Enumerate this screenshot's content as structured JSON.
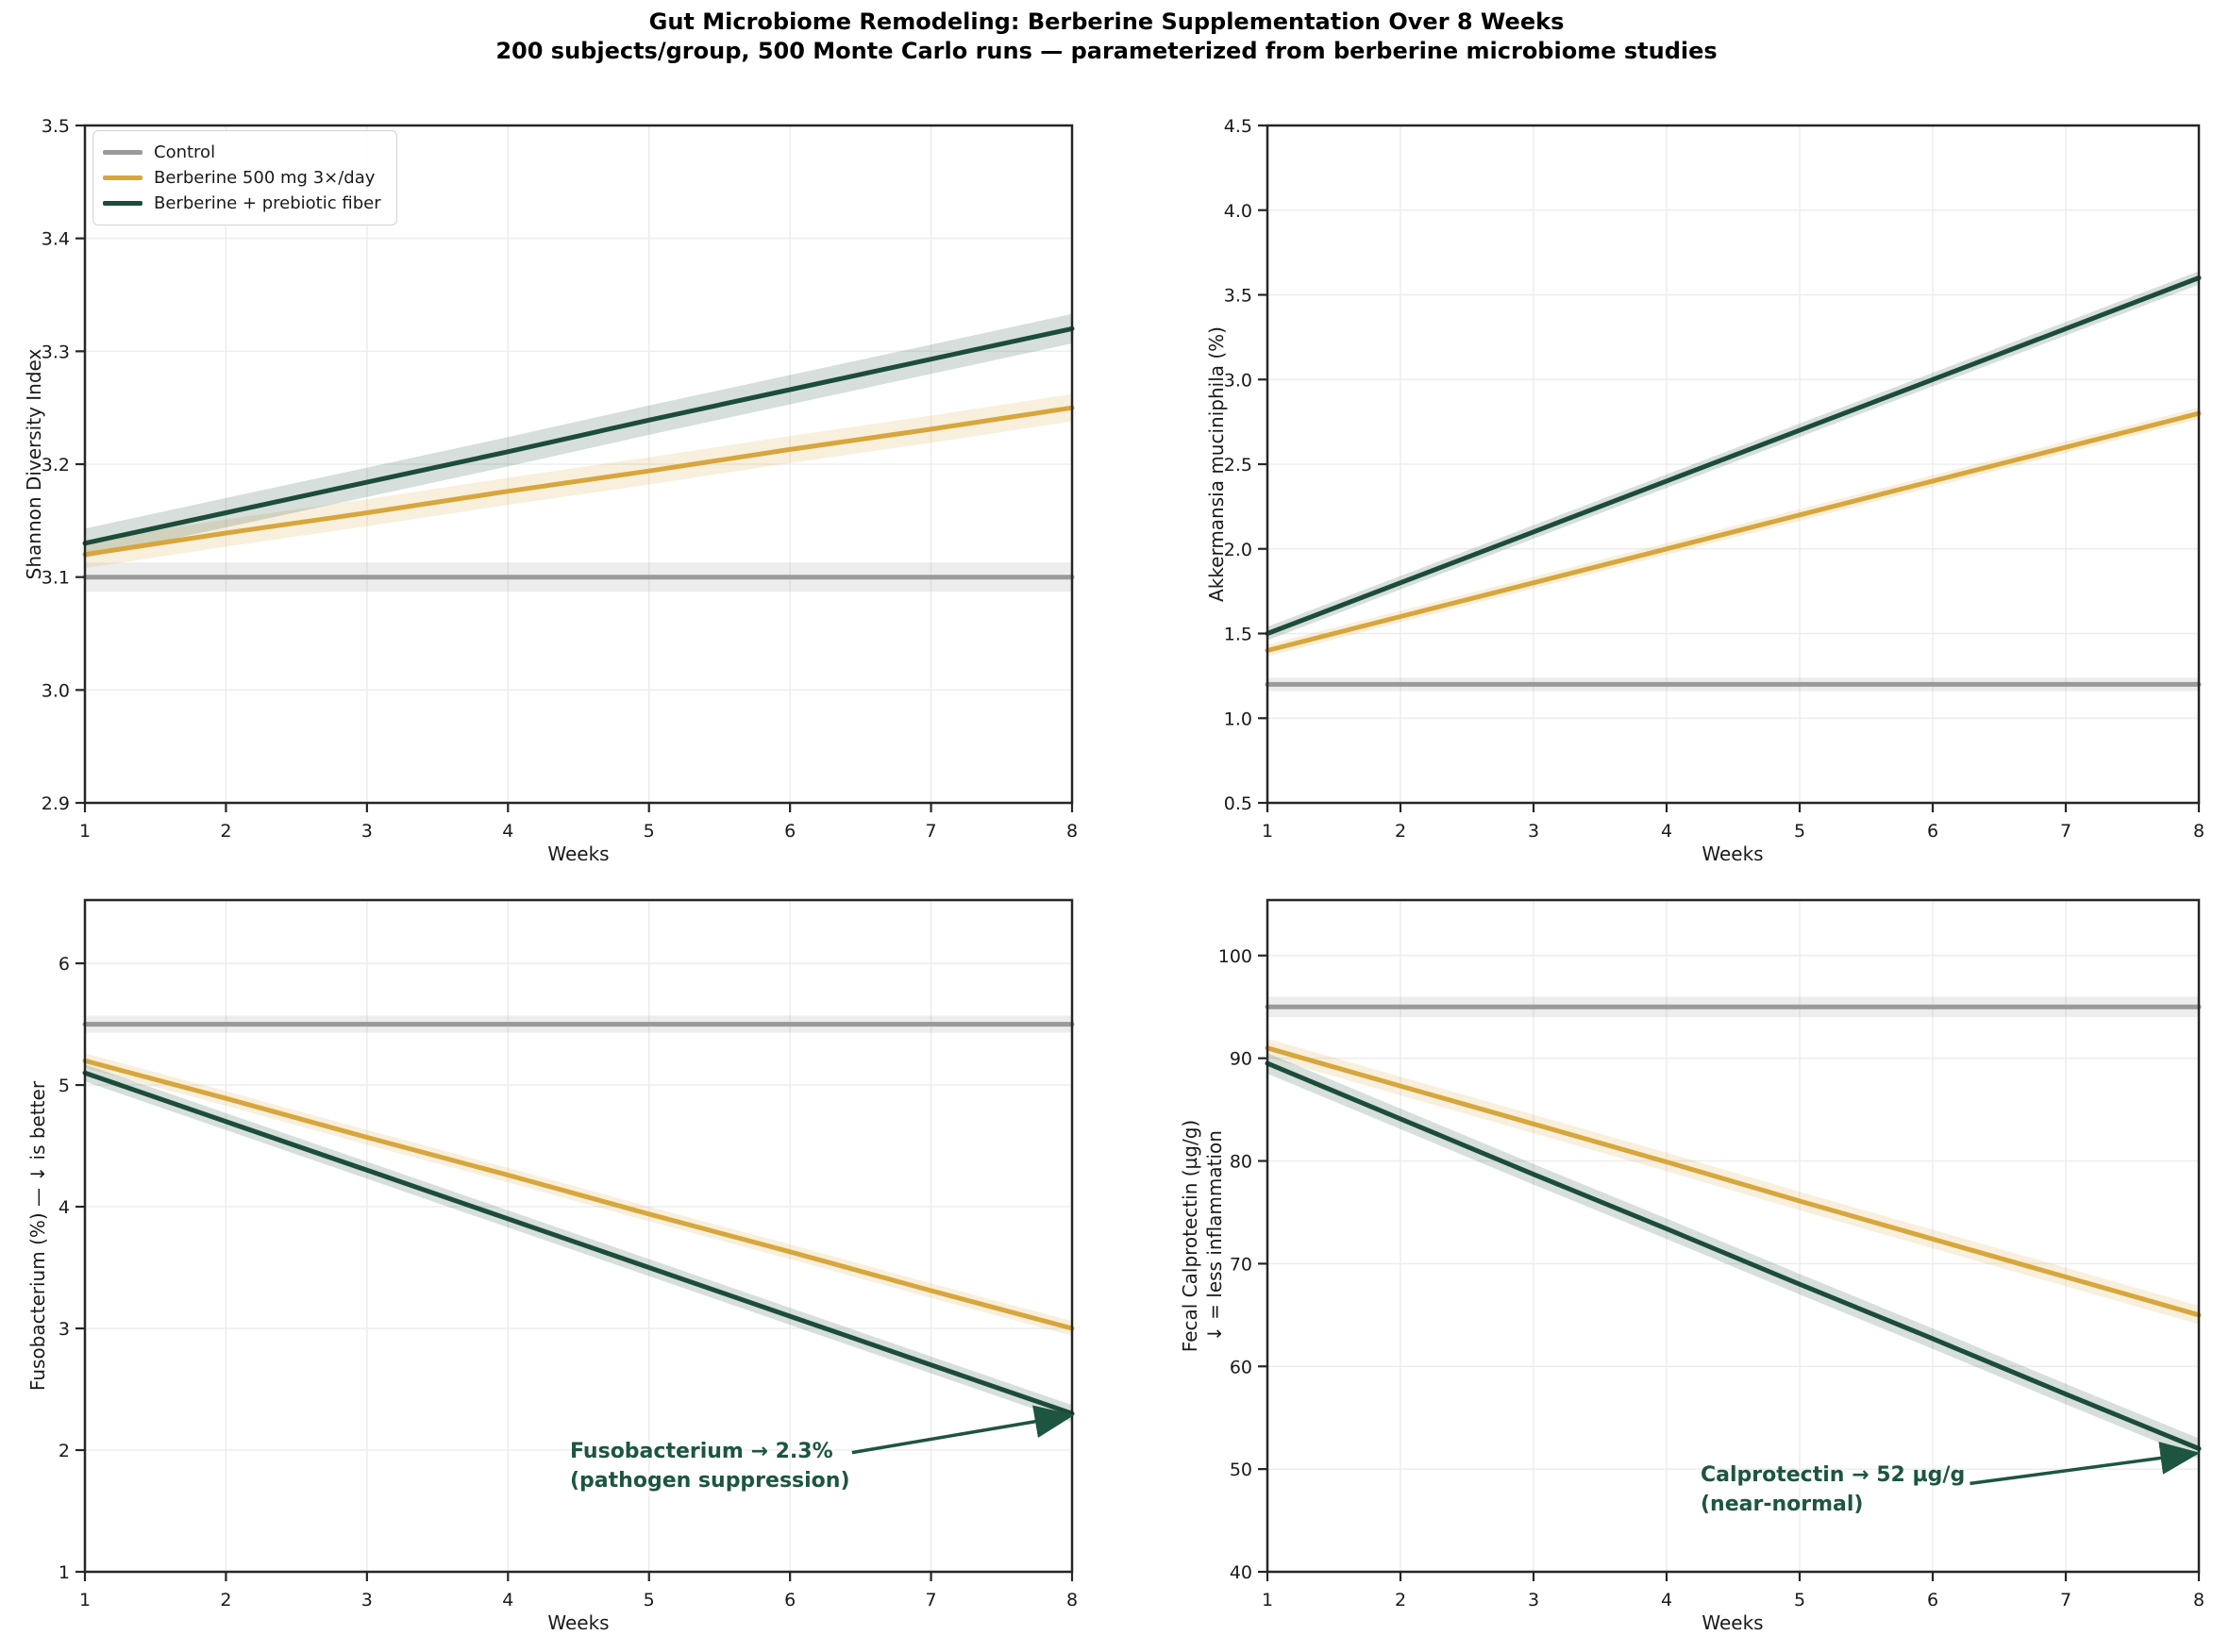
{
  "title": "Gut Microbiome Remodeling: Berberine Supplementation Over 8 Weeks",
  "subtitle": "200 subjects/group, 500 Monte Carlo runs — parameterized from berberine microbiome studies",
  "xlabel": "Weeks",
  "colors": {
    "control": "#9a9a9a",
    "berberine": "#d7a63c",
    "combo": "#1c4c3a",
    "annotation": "#1d5540",
    "grid": "#ededed",
    "spine": "#262626",
    "tick_text": "#1a1a1a"
  },
  "legend": {
    "items": [
      {
        "label": "Control",
        "color": "#9a9a9a"
      },
      {
        "label": "Berberine 500 mg 3×/day",
        "color": "#d7a63c"
      },
      {
        "label": "Berberine + prebiotic fiber",
        "color": "#1c4c3a"
      }
    ]
  },
  "chart_data": [
    {
      "type": "line",
      "position": "top-left",
      "ylabel": "Shannon Diversity Index",
      "xlabel": "Weeks",
      "ylim": [
        2.9,
        3.5
      ],
      "yticks": [
        2.9,
        3.0,
        3.1,
        3.2,
        3.3,
        3.4,
        3.5
      ],
      "ytick_labels": [
        "2.9",
        "3.0",
        "3.1",
        "3.2",
        "3.3",
        "3.4",
        "3.5"
      ],
      "x": [
        1,
        2,
        3,
        4,
        5,
        6,
        7,
        8
      ],
      "xtick_labels": [
        "1",
        "2",
        "3",
        "4",
        "5",
        "6",
        "7",
        "8"
      ],
      "grid": true,
      "legend_position": "upper-left",
      "series": [
        {
          "name": "Control",
          "color": "#9a9a9a",
          "ci": 0.013,
          "values": [
            3.1,
            3.1,
            3.1,
            3.1,
            3.1,
            3.1,
            3.1,
            3.1
          ]
        },
        {
          "name": "Berberine 500 mg 3×/day",
          "color": "#d7a63c",
          "ci": 0.012,
          "values": [
            3.12,
            3.139,
            3.157,
            3.176,
            3.194,
            3.213,
            3.231,
            3.25
          ]
        },
        {
          "name": "Berberine + prebiotic fiber",
          "color": "#1c4c3a",
          "ci": 0.013,
          "values": [
            3.13,
            3.157,
            3.184,
            3.211,
            3.239,
            3.266,
            3.293,
            3.32
          ]
        }
      ]
    },
    {
      "type": "line",
      "position": "top-right",
      "ylabel": "Akkermansia muciniphila (%)",
      "xlabel": "Weeks",
      "ylim": [
        0.5,
        4.5
      ],
      "yticks": [
        0.5,
        1.0,
        1.5,
        2.0,
        2.5,
        3.0,
        3.5,
        4.0,
        4.5
      ],
      "ytick_labels": [
        "0.5",
        "1.0",
        "1.5",
        "2.0",
        "2.5",
        "3.0",
        "3.5",
        "4.0",
        "4.5"
      ],
      "x": [
        1,
        2,
        3,
        4,
        5,
        6,
        7,
        8
      ],
      "xtick_labels": [
        "1",
        "2",
        "3",
        "4",
        "5",
        "6",
        "7",
        "8"
      ],
      "grid": true,
      "series": [
        {
          "name": "Control",
          "color": "#9a9a9a",
          "ci": 0.04,
          "values": [
            1.2,
            1.2,
            1.2,
            1.2,
            1.2,
            1.2,
            1.2,
            1.2
          ]
        },
        {
          "name": "Berberine 500 mg 3×/day",
          "color": "#d7a63c",
          "ci": 0.035,
          "values": [
            1.4,
            1.6,
            1.8,
            2.0,
            2.2,
            2.4,
            2.6,
            2.8
          ]
        },
        {
          "name": "Berberine + prebiotic fiber",
          "color": "#1c4c3a",
          "ci": 0.04,
          "values": [
            1.5,
            1.8,
            2.1,
            2.4,
            2.7,
            3.0,
            3.3,
            3.6
          ]
        }
      ]
    },
    {
      "type": "line",
      "position": "bottom-left",
      "ylabel": "Fusobacterium (%) — ↓ is better",
      "xlabel": "Weeks",
      "ylim": [
        1,
        6.52
      ],
      "yticks": [
        1,
        2,
        3,
        4,
        5,
        6
      ],
      "ytick_labels": [
        "1",
        "2",
        "3",
        "4",
        "5",
        "6"
      ],
      "x": [
        1,
        2,
        3,
        4,
        5,
        6,
        7,
        8
      ],
      "xtick_labels": [
        "1",
        "2",
        "3",
        "4",
        "5",
        "6",
        "7",
        "8"
      ],
      "grid": true,
      "series": [
        {
          "name": "Control",
          "color": "#9a9a9a",
          "ci": 0.07,
          "values": [
            5.5,
            5.5,
            5.5,
            5.5,
            5.5,
            5.5,
            5.5,
            5.5
          ]
        },
        {
          "name": "Berberine 500 mg 3×/day",
          "color": "#d7a63c",
          "ci": 0.06,
          "values": [
            5.2,
            4.89,
            4.57,
            4.26,
            3.94,
            3.63,
            3.31,
            3.0
          ]
        },
        {
          "name": "Berberine + prebiotic fiber",
          "color": "#1c4c3a",
          "ci": 0.07,
          "values": [
            5.1,
            4.7,
            4.3,
            3.9,
            3.5,
            3.1,
            2.7,
            2.3
          ]
        }
      ],
      "annotation": {
        "line1": "Fusobacterium → 2.3%",
        "line2": "(pathogen suppression)",
        "arrow_from": {
          "week": 6.44,
          "value": 1.98
        },
        "arrow_to": {
          "week": 7.97,
          "value": 2.28
        }
      }
    },
    {
      "type": "line",
      "position": "bottom-right",
      "ylabel": "Fecal Calprotectin (µg/g)",
      "ylabel2": "↓ = less inflammation",
      "xlabel": "Weeks",
      "ylim": [
        40,
        105.4
      ],
      "yticks": [
        40,
        50,
        60,
        70,
        80,
        90,
        100
      ],
      "ytick_labels": [
        "40",
        "50",
        "60",
        "70",
        "80",
        "90",
        "100"
      ],
      "x": [
        1,
        2,
        3,
        4,
        5,
        6,
        7,
        8
      ],
      "xtick_labels": [
        "1",
        "2",
        "3",
        "4",
        "5",
        "6",
        "7",
        "8"
      ],
      "grid": true,
      "series": [
        {
          "name": "Control",
          "color": "#9a9a9a",
          "ci": 1.0,
          "values": [
            95,
            95,
            95,
            95,
            95,
            95,
            95,
            95
          ]
        },
        {
          "name": "Berberine 500 mg 3×/day",
          "color": "#d7a63c",
          "ci": 0.9,
          "values": [
            91,
            87.3,
            83.6,
            79.9,
            76.1,
            72.4,
            68.7,
            65
          ]
        },
        {
          "name": "Berberine + prebiotic fiber",
          "color": "#1c4c3a",
          "ci": 1.0,
          "values": [
            89.5,
            84.1,
            78.7,
            73.4,
            68.0,
            62.7,
            57.3,
            52
          ]
        }
      ],
      "annotation": {
        "line1": "Calprotectin → 52 µg/g",
        "line2": "(near-normal)",
        "arrow_from": {
          "week": 6.28,
          "value": 48.6
        },
        "arrow_to": {
          "week": 7.96,
          "value": 51.5
        }
      }
    }
  ]
}
